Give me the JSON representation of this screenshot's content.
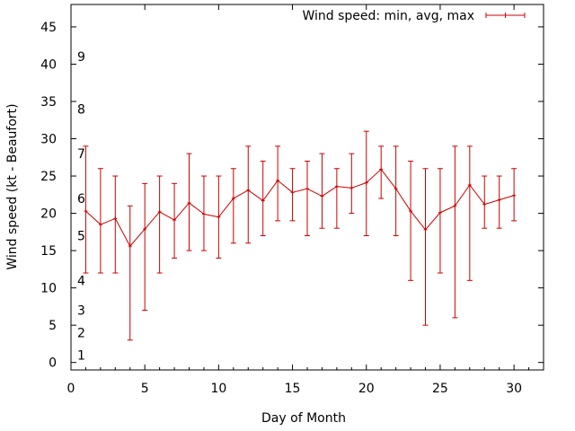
{
  "chart_data": {
    "type": "line",
    "xlabel": "Day of Month",
    "ylabel": "Wind speed (kt - Beaufort)",
    "xlim": [
      0,
      32
    ],
    "ylim": [
      -1,
      48
    ],
    "xticks": [
      0,
      5,
      10,
      15,
      20,
      25,
      30
    ],
    "yticks": [
      0,
      5,
      10,
      15,
      20,
      25,
      30,
      35,
      40,
      45
    ],
    "grid": false,
    "legend_position": "top-right",
    "series": [
      {
        "name": "Wind speed: min, avg, max",
        "color": "#cc0000",
        "x": [
          1,
          2,
          3,
          4,
          5,
          6,
          7,
          8,
          9,
          10,
          11,
          12,
          13,
          14,
          15,
          16,
          17,
          18,
          19,
          20,
          21,
          22,
          23,
          24,
          25,
          26,
          27,
          28,
          29,
          30
        ],
        "avg": [
          20.3,
          18.5,
          19.3,
          15.6,
          17.9,
          20.2,
          19.1,
          21.4,
          19.9,
          19.5,
          22.0,
          23.1,
          21.7,
          24.4,
          22.8,
          23.3,
          22.3,
          23.6,
          23.4,
          24.1,
          25.9,
          23.3,
          20.3,
          17.8,
          20.1,
          21.0,
          23.8,
          21.2,
          21.8,
          22.4
        ],
        "min": [
          12,
          12,
          12,
          3,
          7,
          12,
          14,
          15,
          15,
          14,
          16,
          16,
          17,
          19,
          19,
          17,
          18,
          18,
          20,
          17,
          22,
          17,
          11,
          5,
          12,
          6,
          11,
          18,
          18,
          19
        ],
        "max": [
          29,
          26,
          25,
          21,
          24,
          25,
          24,
          28,
          25,
          25,
          26,
          29,
          27,
          29,
          26,
          27,
          28,
          26,
          28,
          31,
          29,
          29,
          27,
          26,
          26,
          29,
          29,
          25,
          25,
          26
        ]
      }
    ],
    "annotations": [
      {
        "text": "1",
        "y": 1
      },
      {
        "text": "2",
        "y": 4
      },
      {
        "text": "3",
        "y": 7
      },
      {
        "text": "4",
        "y": 11
      },
      {
        "text": "5",
        "y": 17
      },
      {
        "text": "6",
        "y": 22
      },
      {
        "text": "7",
        "y": 28
      },
      {
        "text": "8",
        "y": 34
      },
      {
        "text": "9",
        "y": 41
      }
    ]
  }
}
